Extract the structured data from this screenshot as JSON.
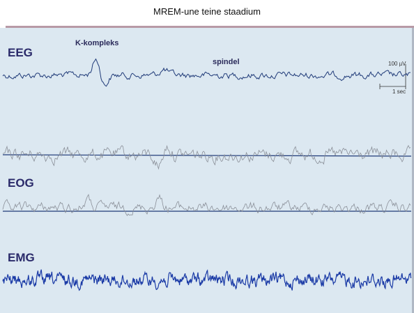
{
  "title": "MREM-une teine staadium",
  "figure": {
    "eeg_label": "EEG",
    "k_complex": "K-kompleks",
    "spindle": "spindel",
    "scale_amplitude": "100 µV",
    "scale_time": "1 sec",
    "eog_label": "EOG",
    "emg_label": "EMG"
  }
}
